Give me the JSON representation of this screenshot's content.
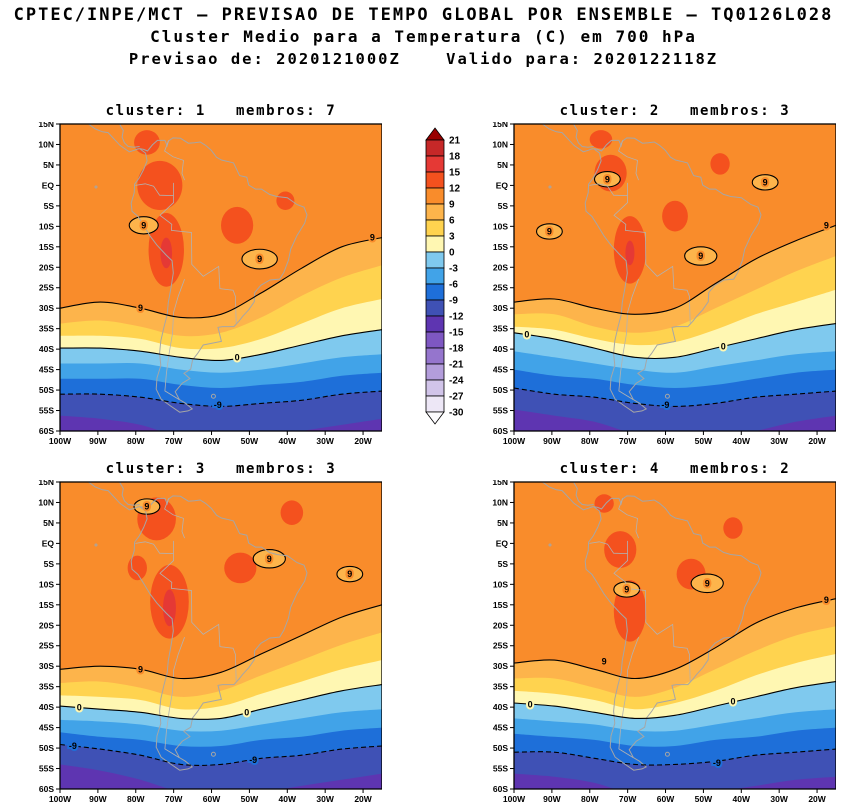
{
  "header": {
    "line1": "CPTEC/INPE/MCT — PREVISAO DE TEMPO GLOBAL POR ENSEMBLE — TQ0126L028",
    "line2": "Cluster Medio para a Temperatura (C) em 700 hPa",
    "line3": "Previsao de: 2020121000Z    Valido para: 2020122118Z"
  },
  "chart_data": {
    "type": "heatmap",
    "variable": "Cluster Medio para a Temperatura (C) em 700 hPa",
    "x_ticks": [
      "100W",
      "90W",
      "80W",
      "70W",
      "60W",
      "50W",
      "40W",
      "30W",
      "20W"
    ],
    "y_ticks": [
      "15N",
      "10N",
      "5N",
      "EQ",
      "5S",
      "10S",
      "15S",
      "20S",
      "25S",
      "30S",
      "35S",
      "40S",
      "45S",
      "50S",
      "55S",
      "60S"
    ],
    "lon_range_deg": [
      -100,
      -15
    ],
    "lat_range_deg": [
      15,
      -60
    ],
    "contour_line_levels": [
      9,
      0,
      -9
    ],
    "colorbar": {
      "levels": [
        21,
        18,
        15,
        12,
        9,
        6,
        3,
        0,
        -3,
        -6,
        -9,
        -12,
        -15,
        -18,
        -21,
        -24,
        -27,
        -30
      ],
      "colors": [
        "#990000",
        "#C62828",
        "#E53935",
        "#F4511E",
        "#F98C2B",
        "#FDB44B",
        "#FFD34F",
        "#FFF7B2",
        "#7FC9EE",
        "#41A3E8",
        "#1E6FD9",
        "#3F51B5",
        "#5E35B1",
        "#7E57C2",
        "#9575CD",
        "#B39DDB",
        "#D1C4E9",
        "#EDE7F6",
        "#FCFBFE"
      ]
    },
    "panels": [
      {
        "cluster": 1,
        "membros": 7,
        "title": "cluster: 1   membros: 7",
        "boundaries": [
          {
            "level": 9,
            "ys": [
              0.6,
              0.58,
              0.6,
              0.63,
              0.62,
              0.55,
              0.47,
              0.4,
              0.37
            ]
          },
          {
            "level": 6,
            "ys": [
              0.65,
              0.64,
              0.66,
              0.69,
              0.68,
              0.63,
              0.56,
              0.5,
              0.46
            ]
          },
          {
            "level": 3,
            "ys": [
              0.69,
              0.69,
              0.7,
              0.73,
              0.73,
              0.7,
              0.65,
              0.6,
              0.57
            ]
          },
          {
            "level": 0,
            "ys": [
              0.73,
              0.73,
              0.74,
              0.76,
              0.77,
              0.75,
              0.72,
              0.69,
              0.67
            ]
          },
          {
            "level": -3,
            "ys": [
              0.78,
              0.78,
              0.78,
              0.8,
              0.81,
              0.8,
              0.78,
              0.76,
              0.75
            ]
          },
          {
            "level": -6,
            "ys": [
              0.83,
              0.83,
              0.83,
              0.85,
              0.86,
              0.85,
              0.84,
              0.82,
              0.81
            ]
          },
          {
            "level": -9,
            "ys": [
              0.88,
              0.88,
              0.89,
              0.91,
              0.92,
              0.91,
              0.9,
              0.88,
              0.87
            ]
          },
          {
            "level": -12,
            "ys": [
              0.95,
              0.96,
              0.98,
              1.02,
              1.03,
              1.02,
              1.0,
              0.98,
              0.96
            ]
          }
        ],
        "warm_blobs": [
          [
            0.31,
            0.2,
            0.07,
            0.08
          ],
          [
            0.33,
            0.41,
            0.055,
            0.12
          ],
          [
            0.55,
            0.33,
            0.05,
            0.06
          ],
          [
            0.27,
            0.06,
            0.04,
            0.04
          ],
          [
            0.7,
            0.25,
            0.028,
            0.03
          ]
        ],
        "hot_cores": [
          [
            0.33,
            0.42,
            0.018,
            0.05
          ]
        ],
        "cool_pockets": [
          [
            0.26,
            0.33,
            0.045,
            0.028
          ],
          [
            0.62,
            0.44,
            0.055,
            0.032
          ]
        ],
        "labels": [
          {
            "t": "9",
            "x": 0.26,
            "y": 0.33
          },
          {
            "t": "9",
            "x": 0.62,
            "y": 0.44
          },
          {
            "t": "9",
            "x": 0.97,
            "y": 0.37
          },
          {
            "t": "9",
            "x": 0.25,
            "y": 0.6
          },
          {
            "t": "0",
            "x": 0.55,
            "y": 0.76
          },
          {
            "t": "-9",
            "x": 0.49,
            "y": 0.915
          }
        ]
      },
      {
        "cluster": 2,
        "membros": 3,
        "title": "cluster: 2   membros: 3",
        "boundaries": [
          {
            "level": 9,
            "ys": [
              0.58,
              0.57,
              0.6,
              0.62,
              0.6,
              0.52,
              0.44,
              0.38,
              0.33
            ]
          },
          {
            "level": 6,
            "ys": [
              0.62,
              0.62,
              0.66,
              0.68,
              0.66,
              0.6,
              0.54,
              0.48,
              0.43
            ]
          },
          {
            "level": 3,
            "ys": [
              0.66,
              0.67,
              0.7,
              0.72,
              0.71,
              0.67,
              0.62,
              0.58,
              0.54
            ]
          },
          {
            "level": 0,
            "ys": [
              0.68,
              0.7,
              0.73,
              0.76,
              0.76,
              0.73,
              0.7,
              0.67,
              0.65
            ]
          },
          {
            "level": -3,
            "ys": [
              0.74,
              0.76,
              0.78,
              0.8,
              0.81,
              0.79,
              0.77,
              0.75,
              0.74
            ]
          },
          {
            "level": -6,
            "ys": [
              0.8,
              0.82,
              0.83,
              0.85,
              0.86,
              0.85,
              0.83,
              0.81,
              0.8
            ]
          },
          {
            "level": -9,
            "ys": [
              0.86,
              0.88,
              0.89,
              0.91,
              0.92,
              0.91,
              0.89,
              0.88,
              0.87
            ]
          },
          {
            "level": -12,
            "ys": [
              0.93,
              0.95,
              0.97,
              1.01,
              1.03,
              1.02,
              1.0,
              0.97,
              0.95
            ]
          }
        ],
        "warm_blobs": [
          [
            0.3,
            0.16,
            0.05,
            0.06
          ],
          [
            0.36,
            0.41,
            0.05,
            0.11
          ],
          [
            0.5,
            0.3,
            0.04,
            0.05
          ],
          [
            0.64,
            0.13,
            0.03,
            0.035
          ],
          [
            0.27,
            0.05,
            0.035,
            0.03
          ]
        ],
        "hot_cores": [
          [
            0.36,
            0.42,
            0.014,
            0.04
          ]
        ],
        "cool_pockets": [
          [
            0.29,
            0.18,
            0.04,
            0.025
          ],
          [
            0.11,
            0.35,
            0.04,
            0.025
          ],
          [
            0.58,
            0.43,
            0.05,
            0.03
          ],
          [
            0.78,
            0.19,
            0.04,
            0.025
          ]
        ],
        "labels": [
          {
            "t": "9",
            "x": 0.29,
            "y": 0.18
          },
          {
            "t": "9",
            "x": 0.11,
            "y": 0.35
          },
          {
            "t": "9",
            "x": 0.58,
            "y": 0.43
          },
          {
            "t": "9",
            "x": 0.78,
            "y": 0.19
          },
          {
            "t": "9",
            "x": 0.97,
            "y": 0.33
          },
          {
            "t": "0",
            "x": 0.04,
            "y": 0.685
          },
          {
            "t": "0",
            "x": 0.65,
            "y": 0.725
          },
          {
            "t": "-9",
            "x": 0.47,
            "y": 0.915
          }
        ]
      },
      {
        "cluster": 3,
        "membros": 3,
        "title": "cluster: 3   membros: 3",
        "boundaries": [
          {
            "level": 9,
            "ys": [
              0.61,
              0.6,
              0.61,
              0.64,
              0.62,
              0.56,
              0.5,
              0.44,
              0.4
            ]
          },
          {
            "level": 6,
            "ys": [
              0.655,
              0.65,
              0.67,
              0.7,
              0.68,
              0.63,
              0.58,
              0.53,
              0.49
            ]
          },
          {
            "level": 3,
            "ys": [
              0.695,
              0.7,
              0.71,
              0.74,
              0.73,
              0.69,
              0.65,
              0.61,
              0.58
            ]
          },
          {
            "level": 0,
            "ys": [
              0.73,
              0.74,
              0.75,
              0.77,
              0.77,
              0.74,
              0.71,
              0.68,
              0.66
            ]
          },
          {
            "level": -3,
            "ys": [
              0.775,
              0.78,
              0.79,
              0.81,
              0.81,
              0.79,
              0.77,
              0.75,
              0.74
            ]
          },
          {
            "level": -6,
            "ys": [
              0.815,
              0.83,
              0.84,
              0.86,
              0.86,
              0.84,
              0.83,
              0.81,
              0.8
            ]
          },
          {
            "level": -9,
            "ys": [
              0.855,
              0.87,
              0.89,
              0.92,
              0.92,
              0.9,
              0.89,
              0.87,
              0.86
            ]
          },
          {
            "level": -12,
            "ys": [
              0.92,
              0.94,
              0.97,
              1.01,
              1.02,
              1.01,
              0.99,
              0.97,
              0.95
            ]
          }
        ],
        "warm_blobs": [
          [
            0.3,
            0.12,
            0.06,
            0.07
          ],
          [
            0.34,
            0.39,
            0.06,
            0.12
          ],
          [
            0.56,
            0.28,
            0.05,
            0.05
          ],
          [
            0.72,
            0.1,
            0.035,
            0.04
          ],
          [
            0.24,
            0.28,
            0.03,
            0.04
          ]
        ],
        "hot_cores": [
          [
            0.34,
            0.41,
            0.02,
            0.06
          ]
        ],
        "cool_pockets": [
          [
            0.27,
            0.08,
            0.04,
            0.025
          ],
          [
            0.65,
            0.25,
            0.05,
            0.03
          ],
          [
            0.9,
            0.3,
            0.04,
            0.025
          ]
        ],
        "labels": [
          {
            "t": "9",
            "x": 0.27,
            "y": 0.08
          },
          {
            "t": "9",
            "x": 0.65,
            "y": 0.25
          },
          {
            "t": "9",
            "x": 0.9,
            "y": 0.3
          },
          {
            "t": "9",
            "x": 0.25,
            "y": 0.61
          },
          {
            "t": "0",
            "x": 0.06,
            "y": 0.735
          },
          {
            "t": "0",
            "x": 0.58,
            "y": 0.75
          },
          {
            "t": "-9",
            "x": 0.04,
            "y": 0.86
          },
          {
            "t": "-9",
            "x": 0.6,
            "y": 0.905
          }
        ]
      },
      {
        "cluster": 4,
        "membros": 2,
        "title": "cluster: 4   membros: 2",
        "boundaries": [
          {
            "level": 9,
            "ys": [
              0.59,
              0.58,
              0.61,
              0.64,
              0.61,
              0.54,
              0.46,
              0.41,
              0.38
            ]
          },
          {
            "level": 6,
            "ys": [
              0.64,
              0.64,
              0.67,
              0.7,
              0.67,
              0.61,
              0.55,
              0.5,
              0.47
            ]
          },
          {
            "level": 3,
            "ys": [
              0.68,
              0.69,
              0.71,
              0.74,
              0.72,
              0.68,
              0.63,
              0.59,
              0.56
            ]
          },
          {
            "level": 0,
            "ys": [
              0.72,
              0.73,
              0.75,
              0.77,
              0.76,
              0.73,
              0.7,
              0.67,
              0.65
            ]
          },
          {
            "level": -3,
            "ys": [
              0.77,
              0.78,
              0.79,
              0.81,
              0.81,
              0.79,
              0.77,
              0.75,
              0.74
            ]
          },
          {
            "level": -6,
            "ys": [
              0.82,
              0.83,
              0.84,
              0.86,
              0.86,
              0.84,
              0.83,
              0.81,
              0.8
            ]
          },
          {
            "level": -9,
            "ys": [
              0.88,
              0.88,
              0.9,
              0.92,
              0.92,
              0.91,
              0.89,
              0.88,
              0.87
            ]
          },
          {
            "level": -12,
            "ys": [
              0.95,
              0.96,
              0.98,
              1.02,
              1.03,
              1.01,
              0.99,
              0.97,
              0.96
            ]
          }
        ],
        "warm_blobs": [
          [
            0.33,
            0.22,
            0.05,
            0.06
          ],
          [
            0.36,
            0.42,
            0.05,
            0.1
          ],
          [
            0.55,
            0.3,
            0.045,
            0.05
          ],
          [
            0.68,
            0.15,
            0.03,
            0.035
          ],
          [
            0.28,
            0.07,
            0.03,
            0.03
          ]
        ],
        "hot_cores": [],
        "cool_pockets": [
          [
            0.35,
            0.35,
            0.04,
            0.025
          ],
          [
            0.6,
            0.33,
            0.05,
            0.03
          ]
        ],
        "labels": [
          {
            "t": "9",
            "x": 0.35,
            "y": 0.35
          },
          {
            "t": "9",
            "x": 0.6,
            "y": 0.33
          },
          {
            "t": "9",
            "x": 0.97,
            "y": 0.385
          },
          {
            "t": "9",
            "x": 0.28,
            "y": 0.585
          },
          {
            "t": "0",
            "x": 0.05,
            "y": 0.725
          },
          {
            "t": "0",
            "x": 0.68,
            "y": 0.715
          },
          {
            "t": "-9",
            "x": 0.63,
            "y": 0.915
          }
        ]
      }
    ]
  }
}
